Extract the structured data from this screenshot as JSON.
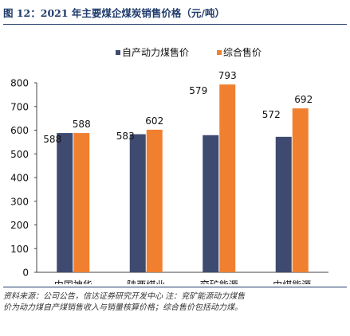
{
  "header": {
    "title": "图 12：2021 年主要煤企煤炭销售价格（元/吨）"
  },
  "footer": {
    "source_line1": "资料来源：公司公告，信达证券研究开发中心 注：兖矿能源动力煤售",
    "source_line2": "价为动力煤自产煤销售收入与销量核算价格；综合售价包括动力煤。"
  },
  "chart_data": {
    "type": "bar",
    "categories": [
      "中国神华",
      "陕西煤业",
      "兖矿能源",
      "中煤能源"
    ],
    "series": [
      {
        "name": "自产动力煤售价",
        "values": [
          588,
          583,
          579,
          572
        ],
        "color": "#3f4a70"
      },
      {
        "name": "综合售价",
        "values": [
          588,
          602,
          793,
          692
        ],
        "color": "#f08030"
      }
    ],
    "data_labels": {
      "series0": [
        "588",
        "583",
        "579",
        "572"
      ],
      "series1": [
        "588",
        "602",
        "793",
        "692"
      ]
    },
    "ylim": [
      0,
      800
    ],
    "yticks": [
      "0",
      "100",
      "200",
      "300",
      "400",
      "500",
      "600",
      "700",
      "800"
    ],
    "legend_position": "top-center",
    "grid": false
  }
}
